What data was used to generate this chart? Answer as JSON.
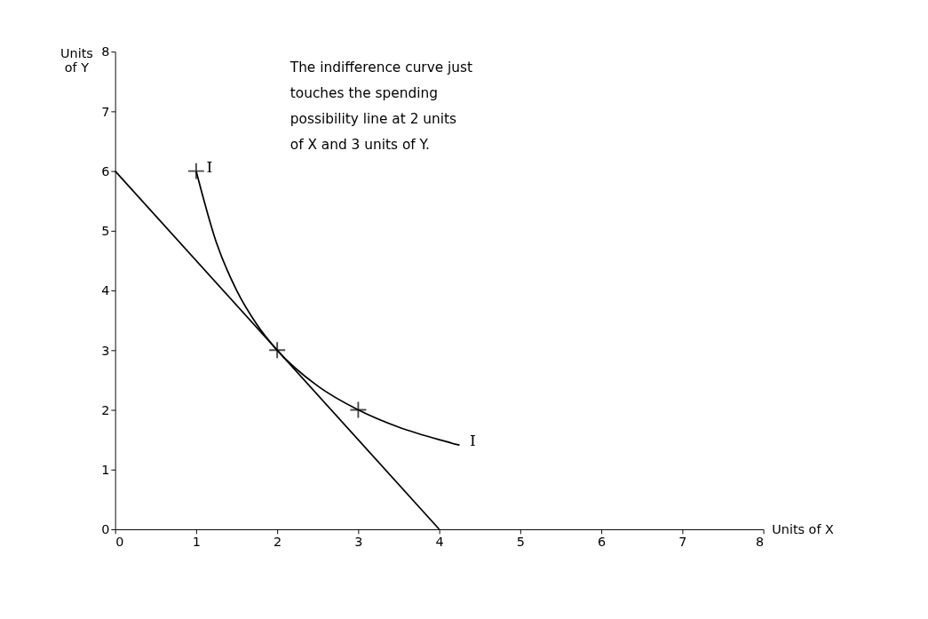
{
  "chart_data": {
    "type": "line",
    "xlabel": "Units of X",
    "ylabel": "Units of Y",
    "xlim": [
      0,
      8
    ],
    "ylim": [
      0,
      8
    ],
    "xticks": [
      0,
      1,
      2,
      3,
      4,
      5,
      6,
      7,
      8
    ],
    "yticks": [
      0,
      1,
      2,
      3,
      4,
      5,
      6,
      7,
      8
    ],
    "grid": false,
    "series": [
      {
        "color": "#000000",
        "x": [
          0,
          4
        ],
        "values": [
          6,
          0
        ]
      },
      {
        "color": "#000000",
        "x": [
          1,
          1.25,
          1.5,
          1.75,
          2,
          2.5,
          3,
          3.5,
          4,
          4.25
        ],
        "values": [
          6,
          4.8,
          4,
          3.43,
          3,
          2.4,
          2,
          1.71,
          1.5,
          1.41
        ]
      },
      {
        "type": "scatter",
        "color": "#000000",
        "marker": "cross",
        "x": [
          1,
          2,
          3
        ],
        "values": [
          6,
          3,
          2
        ]
      }
    ],
    "annotations": [
      "The indifference curve just touches the spending possibility line at 2 units of X and 3 units of Y.",
      "I",
      "I"
    ]
  }
}
